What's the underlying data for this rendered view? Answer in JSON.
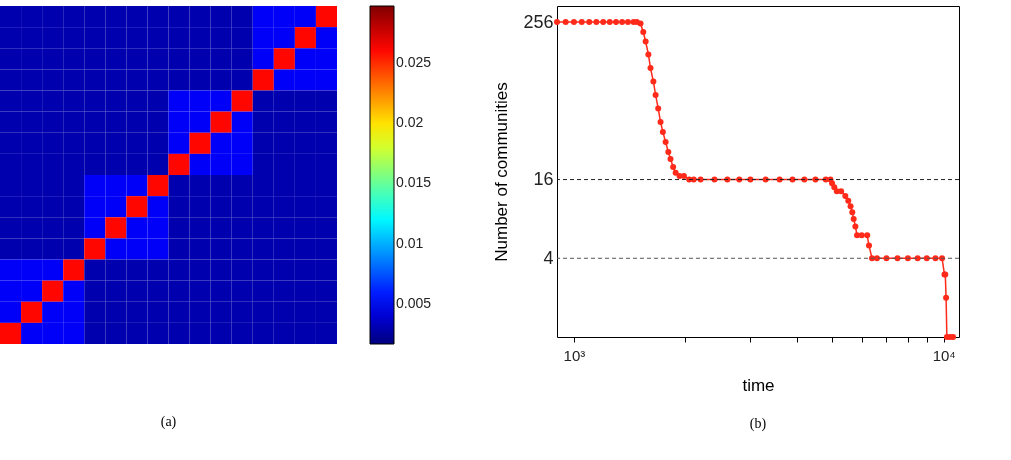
{
  "chart_data": [
    {
      "type": "heatmap",
      "title": "(a)",
      "categories": [
        null,
        null,
        null,
        null,
        null,
        null,
        null,
        null,
        null,
        null,
        null,
        null,
        null,
        null,
        null,
        null
      ],
      "y_categories": [
        null,
        null,
        null,
        null,
        null,
        null,
        null,
        null,
        null,
        null,
        null,
        null,
        null,
        null,
        null,
        null
      ],
      "cells": [
        [
          0.003,
          0.003,
          0.003,
          0.003,
          0.003,
          0.003,
          0.003,
          0.003,
          0.003,
          0.003,
          0.003,
          0.003,
          0.005,
          0.005,
          0.005,
          0.026
        ],
        [
          0.003,
          0.003,
          0.003,
          0.003,
          0.003,
          0.003,
          0.003,
          0.003,
          0.003,
          0.003,
          0.003,
          0.003,
          0.005,
          0.005,
          0.026,
          0.005
        ],
        [
          0.003,
          0.003,
          0.003,
          0.003,
          0.003,
          0.003,
          0.003,
          0.003,
          0.003,
          0.003,
          0.003,
          0.003,
          0.005,
          0.026,
          0.005,
          0.005
        ],
        [
          0.003,
          0.003,
          0.003,
          0.003,
          0.003,
          0.003,
          0.003,
          0.003,
          0.003,
          0.003,
          0.003,
          0.003,
          0.026,
          0.005,
          0.005,
          0.005
        ],
        [
          0.003,
          0.003,
          0.003,
          0.003,
          0.003,
          0.003,
          0.003,
          0.003,
          0.005,
          0.005,
          0.005,
          0.026,
          0.003,
          0.003,
          0.003,
          0.003
        ],
        [
          0.003,
          0.003,
          0.003,
          0.003,
          0.003,
          0.003,
          0.003,
          0.003,
          0.005,
          0.005,
          0.026,
          0.005,
          0.003,
          0.003,
          0.003,
          0.003
        ],
        [
          0.003,
          0.003,
          0.003,
          0.003,
          0.003,
          0.003,
          0.003,
          0.003,
          0.005,
          0.026,
          0.005,
          0.005,
          0.003,
          0.003,
          0.003,
          0.003
        ],
        [
          0.003,
          0.003,
          0.003,
          0.003,
          0.003,
          0.003,
          0.003,
          0.003,
          0.026,
          0.005,
          0.005,
          0.005,
          0.003,
          0.003,
          0.003,
          0.003
        ],
        [
          0.003,
          0.003,
          0.003,
          0.003,
          0.005,
          0.005,
          0.005,
          0.026,
          0.003,
          0.003,
          0.003,
          0.003,
          0.003,
          0.003,
          0.003,
          0.003
        ],
        [
          0.003,
          0.003,
          0.003,
          0.003,
          0.005,
          0.005,
          0.026,
          0.005,
          0.003,
          0.003,
          0.003,
          0.003,
          0.003,
          0.003,
          0.003,
          0.003
        ],
        [
          0.003,
          0.003,
          0.003,
          0.003,
          0.005,
          0.026,
          0.005,
          0.005,
          0.003,
          0.003,
          0.003,
          0.003,
          0.003,
          0.003,
          0.003,
          0.003
        ],
        [
          0.003,
          0.003,
          0.003,
          0.003,
          0.026,
          0.005,
          0.005,
          0.005,
          0.003,
          0.003,
          0.003,
          0.003,
          0.003,
          0.003,
          0.003,
          0.003
        ],
        [
          0.005,
          0.005,
          0.005,
          0.026,
          0.003,
          0.003,
          0.003,
          0.003,
          0.003,
          0.003,
          0.003,
          0.003,
          0.003,
          0.003,
          0.003,
          0.003
        ],
        [
          0.005,
          0.005,
          0.026,
          0.005,
          0.003,
          0.003,
          0.003,
          0.003,
          0.003,
          0.003,
          0.003,
          0.003,
          0.003,
          0.003,
          0.003,
          0.003
        ],
        [
          0.005,
          0.026,
          0.005,
          0.005,
          0.003,
          0.003,
          0.003,
          0.003,
          0.003,
          0.003,
          0.003,
          0.003,
          0.003,
          0.003,
          0.003,
          0.003
        ],
        [
          0.026,
          0.005,
          0.005,
          0.005,
          0.003,
          0.003,
          0.003,
          0.003,
          0.003,
          0.003,
          0.003,
          0.003,
          0.003,
          0.003,
          0.003,
          0.003
        ]
      ],
      "clim": [
        0.0017,
        0.0297
      ],
      "cticks": [
        0.005,
        0.01,
        0.015,
        0.02,
        0.025
      ],
      "tick_labels": false
    },
    {
      "type": "line",
      "title": "(b)",
      "xlabel": "time",
      "ylabel": "Number of communities",
      "log": "xy",
      "marker": "circle",
      "line_style": "solid",
      "x": [
        900,
        950,
        1000,
        1050,
        1100,
        1150,
        1200,
        1250,
        1300,
        1350,
        1400,
        1450,
        1480,
        1514,
        1540,
        1563,
        1590,
        1611,
        1640,
        1663,
        1690,
        1715,
        1740,
        1770,
        1800,
        1825,
        1855,
        1884,
        1930,
        1984,
        2050,
        2109,
        2200,
        2400,
        2600,
        2800,
        3000,
        3300,
        3600,
        3900,
        4200,
        4500,
        4800,
        4940,
        4990,
        5060,
        5140,
        5280,
        5420,
        5520,
        5600,
        5660,
        5710,
        5770,
        5830,
        6000,
        6210,
        6280,
        6400,
        6600,
        7000,
        7500,
        8000,
        8500,
        9000,
        9500,
        9900,
        10050,
        10100,
        10150,
        10200,
        10400,
        10600
      ],
      "series": [
        {
          "color": "#ff2a1a",
          "values": [
            256,
            256,
            256,
            256,
            256,
            256,
            256,
            256,
            256,
            256,
            256,
            256,
            256,
            250,
            215,
            182,
            145,
            114,
            90,
            71,
            56,
            44,
            37,
            31,
            26,
            23,
            20,
            18,
            17,
            17,
            16,
            16,
            16,
            16,
            16,
            16,
            16,
            16,
            16,
            16,
            16,
            16,
            16,
            16,
            15,
            14,
            13,
            13,
            12,
            11,
            10,
            9,
            8,
            7,
            6,
            6,
            6,
            5,
            4,
            4,
            4,
            4,
            4,
            4,
            4,
            4,
            4,
            3,
            3,
            2,
            1,
            1,
            1
          ]
        }
      ],
      "xlim": [
        900,
        11000
      ],
      "ylim": [
        1,
        340
      ],
      "xticks": [
        {
          "value": 1000,
          "label": "10³"
        },
        {
          "value": 2000,
          "label": null
        },
        {
          "value": 3000,
          "label": null
        },
        {
          "value": 4000,
          "label": null
        },
        {
          "value": 5000,
          "label": null
        },
        {
          "value": 6000,
          "label": null
        },
        {
          "value": 7000,
          "label": null
        },
        {
          "value": 8000,
          "label": null
        },
        {
          "value": 9000,
          "label": null
        },
        {
          "value": 10000,
          "label": "10⁴"
        }
      ],
      "yticks": [
        4,
        16,
        256
      ],
      "ref_lines": [
        {
          "axis": "y",
          "value": 16,
          "color": "#222222",
          "line_style": "dashed"
        },
        {
          "axis": "y",
          "value": 4,
          "color": "#555555",
          "line_style": "dashed"
        }
      ]
    }
  ]
}
